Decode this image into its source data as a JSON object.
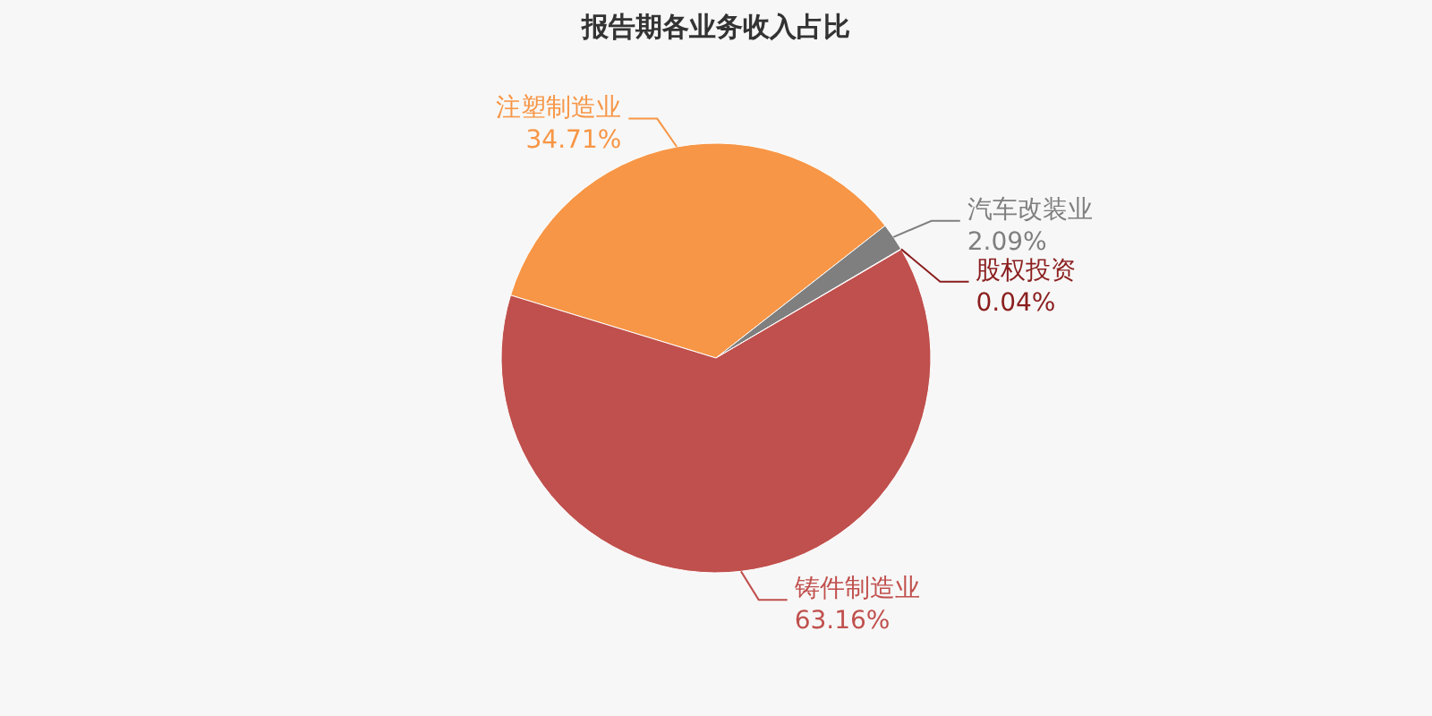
{
  "chart_data": {
    "type": "pie",
    "title": "报告期各业务收入占比",
    "categories": [
      "注塑制造业",
      "汽车改装业",
      "股权投资",
      "铸件制造业"
    ],
    "values": [
      34.71,
      2.09,
      0.04,
      63.16
    ],
    "value_labels": [
      "34.71%",
      "2.09%",
      "0.04%",
      "63.16%"
    ],
    "colors": [
      "#f79646",
      "#7f7f7f",
      "#8b1e1e",
      "#c0504d"
    ]
  }
}
